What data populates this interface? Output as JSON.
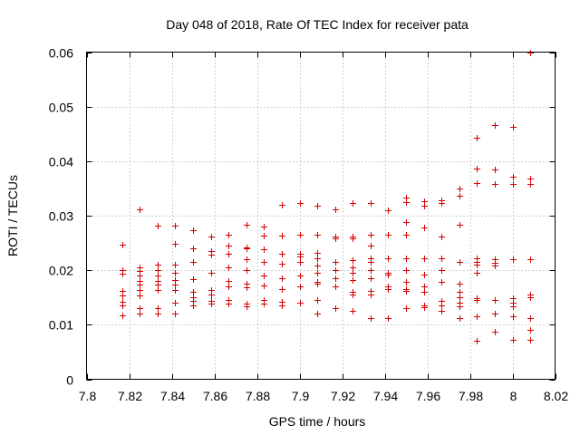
{
  "chart_data": {
    "type": "scatter",
    "title": "Day 048 of 2018, Rate Of TEC Index for receiver pata",
    "xlabel": "GPS time / hours",
    "ylabel": "ROTI / TECUs",
    "xlim": [
      7.8,
      8.02
    ],
    "ylim": [
      0,
      0.06
    ],
    "xticks": [
      "7.8",
      "7.82",
      "7.84",
      "7.86",
      "7.88",
      "7.9",
      "7.92",
      "7.94",
      "7.96",
      "7.98",
      "8",
      "8.02"
    ],
    "yticks": [
      "0",
      "0.01",
      "0.02",
      "0.03",
      "0.04",
      "0.05",
      "0.06"
    ],
    "grid": true,
    "marker": "+",
    "color": "#d40000",
    "series": [
      {
        "name": "ROTI",
        "points": [
          [
            7.8167,
            0.0246
          ],
          [
            7.8167,
            0.02
          ],
          [
            7.8167,
            0.0193
          ],
          [
            7.8167,
            0.0162
          ],
          [
            7.8167,
            0.0153
          ],
          [
            7.8167,
            0.0142
          ],
          [
            7.8167,
            0.0135
          ],
          [
            7.8167,
            0.0118
          ],
          [
            7.825,
            0.0312
          ],
          [
            7.825,
            0.0205
          ],
          [
            7.825,
            0.0198
          ],
          [
            7.825,
            0.019
          ],
          [
            7.825,
            0.018
          ],
          [
            7.825,
            0.0173
          ],
          [
            7.825,
            0.0163
          ],
          [
            7.825,
            0.0153
          ],
          [
            7.825,
            0.013
          ],
          [
            7.825,
            0.012
          ],
          [
            7.8333,
            0.0282
          ],
          [
            7.8333,
            0.021
          ],
          [
            7.8333,
            0.02
          ],
          [
            7.8333,
            0.019
          ],
          [
            7.8333,
            0.018
          ],
          [
            7.8333,
            0.0173
          ],
          [
            7.8333,
            0.0163
          ],
          [
            7.8333,
            0.013
          ],
          [
            7.8333,
            0.012
          ],
          [
            7.8417,
            0.0282
          ],
          [
            7.8417,
            0.0248
          ],
          [
            7.8417,
            0.021
          ],
          [
            7.8417,
            0.0195
          ],
          [
            7.8417,
            0.0182
          ],
          [
            7.8417,
            0.0173
          ],
          [
            7.8417,
            0.0163
          ],
          [
            7.8417,
            0.014
          ],
          [
            7.8417,
            0.012
          ],
          [
            7.85,
            0.0273
          ],
          [
            7.85,
            0.024
          ],
          [
            7.85,
            0.0215
          ],
          [
            7.85,
            0.0183
          ],
          [
            7.85,
            0.016
          ],
          [
            7.85,
            0.015
          ],
          [
            7.85,
            0.0143
          ],
          [
            7.85,
            0.0135
          ],
          [
            7.8583,
            0.0262
          ],
          [
            7.8583,
            0.0235
          ],
          [
            7.8583,
            0.0228
          ],
          [
            7.8583,
            0.0195
          ],
          [
            7.8583,
            0.0163
          ],
          [
            7.8583,
            0.0155
          ],
          [
            7.8583,
            0.0143
          ],
          [
            7.8583,
            0.0138
          ],
          [
            7.8667,
            0.0265
          ],
          [
            7.8667,
            0.0245
          ],
          [
            7.8667,
            0.023
          ],
          [
            7.8667,
            0.0205
          ],
          [
            7.8667,
            0.018
          ],
          [
            7.8667,
            0.017
          ],
          [
            7.8667,
            0.0145
          ],
          [
            7.8667,
            0.0138
          ],
          [
            7.875,
            0.0283
          ],
          [
            7.875,
            0.0242
          ],
          [
            7.875,
            0.024
          ],
          [
            7.875,
            0.022
          ],
          [
            7.875,
            0.02
          ],
          [
            7.875,
            0.0175
          ],
          [
            7.875,
            0.0168
          ],
          [
            7.875,
            0.0138
          ],
          [
            7.875,
            0.0133
          ],
          [
            7.8833,
            0.028
          ],
          [
            7.8833,
            0.0263
          ],
          [
            7.8833,
            0.0238
          ],
          [
            7.8833,
            0.0215
          ],
          [
            7.8833,
            0.019
          ],
          [
            7.8833,
            0.0172
          ],
          [
            7.8833,
            0.0145
          ],
          [
            7.8833,
            0.0138
          ],
          [
            7.8917,
            0.032
          ],
          [
            7.8917,
            0.0263
          ],
          [
            7.8917,
            0.023
          ],
          [
            7.8917,
            0.0212
          ],
          [
            7.8917,
            0.0185
          ],
          [
            7.8917,
            0.0165
          ],
          [
            7.8917,
            0.0142
          ],
          [
            7.8917,
            0.0135
          ],
          [
            7.9,
            0.0323
          ],
          [
            7.9,
            0.0265
          ],
          [
            7.9,
            0.023
          ],
          [
            7.9,
            0.0225
          ],
          [
            7.9,
            0.0215
          ],
          [
            7.9,
            0.019
          ],
          [
            7.9,
            0.017
          ],
          [
            7.9,
            0.014
          ],
          [
            7.9083,
            0.0318
          ],
          [
            7.9083,
            0.0265
          ],
          [
            7.9083,
            0.0232
          ],
          [
            7.9083,
            0.0222
          ],
          [
            7.9083,
            0.0208
          ],
          [
            7.9083,
            0.0195
          ],
          [
            7.9083,
            0.0178
          ],
          [
            7.9083,
            0.0175
          ],
          [
            7.9083,
            0.0145
          ],
          [
            7.9083,
            0.012
          ],
          [
            7.9167,
            0.0312
          ],
          [
            7.9167,
            0.0262
          ],
          [
            7.9167,
            0.0258
          ],
          [
            7.9167,
            0.0215
          ],
          [
            7.9167,
            0.02
          ],
          [
            7.9167,
            0.0185
          ],
          [
            7.9167,
            0.017
          ],
          [
            7.9167,
            0.013
          ],
          [
            7.925,
            0.0323
          ],
          [
            7.925,
            0.0262
          ],
          [
            7.925,
            0.0258
          ],
          [
            7.925,
            0.0218
          ],
          [
            7.925,
            0.0205
          ],
          [
            7.925,
            0.0195
          ],
          [
            7.925,
            0.0182
          ],
          [
            7.925,
            0.016
          ],
          [
            7.925,
            0.0155
          ],
          [
            7.925,
            0.0125
          ],
          [
            7.9333,
            0.0323
          ],
          [
            7.9333,
            0.0265
          ],
          [
            7.9333,
            0.0245
          ],
          [
            7.9333,
            0.0222
          ],
          [
            7.9333,
            0.0215
          ],
          [
            7.9333,
            0.02
          ],
          [
            7.9333,
            0.0185
          ],
          [
            7.9333,
            0.0162
          ],
          [
            7.9333,
            0.0155
          ],
          [
            7.9333,
            0.0113
          ],
          [
            7.9417,
            0.031
          ],
          [
            7.9417,
            0.0265
          ],
          [
            7.9417,
            0.0222
          ],
          [
            7.9417,
            0.0195
          ],
          [
            7.9417,
            0.0192
          ],
          [
            7.9417,
            0.017
          ],
          [
            7.9417,
            0.0165
          ],
          [
            7.9417,
            0.0113
          ],
          [
            7.95,
            0.0333
          ],
          [
            7.95,
            0.0325
          ],
          [
            7.95,
            0.0288
          ],
          [
            7.95,
            0.0265
          ],
          [
            7.95,
            0.0222
          ],
          [
            7.95,
            0.02
          ],
          [
            7.95,
            0.0178
          ],
          [
            7.95,
            0.0165
          ],
          [
            7.95,
            0.0162
          ],
          [
            7.95,
            0.013
          ],
          [
            7.9583,
            0.0327
          ],
          [
            7.9583,
            0.0318
          ],
          [
            7.9583,
            0.0278
          ],
          [
            7.9583,
            0.0222
          ],
          [
            7.9583,
            0.0192
          ],
          [
            7.9583,
            0.017
          ],
          [
            7.9583,
            0.016
          ],
          [
            7.9583,
            0.0135
          ],
          [
            7.9583,
            0.0132
          ],
          [
            7.9667,
            0.0328
          ],
          [
            7.9667,
            0.0323
          ],
          [
            7.9667,
            0.0262
          ],
          [
            7.9667,
            0.0222
          ],
          [
            7.9667,
            0.02
          ],
          [
            7.9667,
            0.0178
          ],
          [
            7.9667,
            0.0143
          ],
          [
            7.9667,
            0.0135
          ],
          [
            7.9667,
            0.0125
          ],
          [
            7.975,
            0.035
          ],
          [
            7.975,
            0.0337
          ],
          [
            7.975,
            0.0283
          ],
          [
            7.975,
            0.0215
          ],
          [
            7.975,
            0.0175
          ],
          [
            7.975,
            0.016
          ],
          [
            7.975,
            0.015
          ],
          [
            7.975,
            0.014
          ],
          [
            7.975,
            0.0133
          ],
          [
            7.975,
            0.0113
          ],
          [
            7.9833,
            0.0443
          ],
          [
            7.9833,
            0.0387
          ],
          [
            7.9833,
            0.036
          ],
          [
            7.9833,
            0.0222
          ],
          [
            7.9833,
            0.0215
          ],
          [
            7.9833,
            0.021
          ],
          [
            7.9833,
            0.0195
          ],
          [
            7.9833,
            0.0148
          ],
          [
            7.9833,
            0.0145
          ],
          [
            7.9833,
            0.0115
          ],
          [
            7.9833,
            0.007
          ],
          [
            7.9917,
            0.0467
          ],
          [
            7.9917,
            0.0385
          ],
          [
            7.9917,
            0.0358
          ],
          [
            7.9917,
            0.022
          ],
          [
            7.9917,
            0.0213
          ],
          [
            7.9917,
            0.0208
          ],
          [
            7.9917,
            0.0145
          ],
          [
            7.9917,
            0.012
          ],
          [
            7.9917,
            0.0087
          ],
          [
            8.0,
            0.0463
          ],
          [
            8.0,
            0.0372
          ],
          [
            8.0,
            0.0358
          ],
          [
            8.0,
            0.022
          ],
          [
            8.0,
            0.0148
          ],
          [
            8.0,
            0.014
          ],
          [
            8.0,
            0.0133
          ],
          [
            8.0,
            0.0115
          ],
          [
            8.0,
            0.0072
          ],
          [
            8.0083,
            0.06
          ],
          [
            8.0083,
            0.0368
          ],
          [
            8.0083,
            0.0358
          ],
          [
            8.0083,
            0.022
          ],
          [
            8.0083,
            0.0155
          ],
          [
            8.0083,
            0.015
          ],
          [
            8.0083,
            0.0113
          ],
          [
            8.0083,
            0.009
          ],
          [
            8.0083,
            0.0073
          ]
        ]
      }
    ]
  }
}
